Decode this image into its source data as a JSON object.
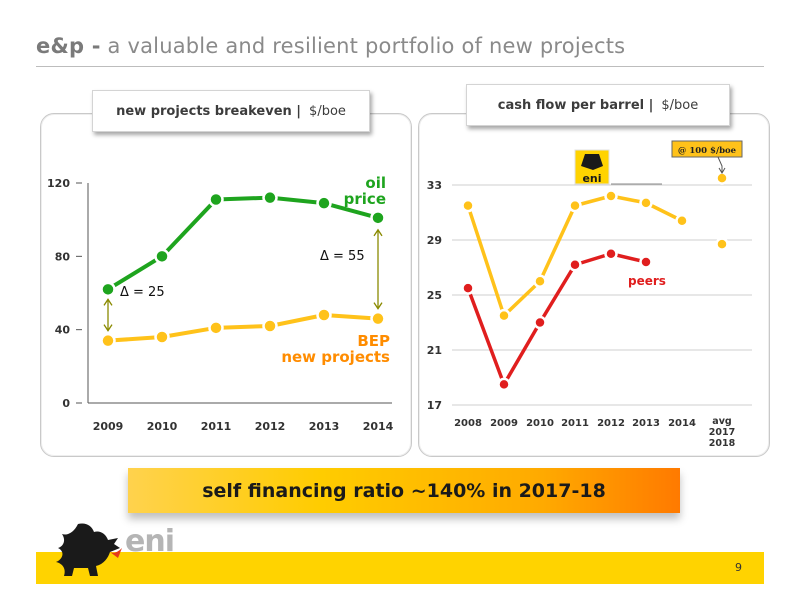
{
  "page": {
    "title_prefix": "e&p -",
    "title_rest": "a valuable and resilient portfolio of new projects",
    "banner": "self financing ratio ~140% in 2017-18",
    "page_number": "9",
    "logo_text": "eni",
    "colors": {
      "green": "#1ea41e",
      "orange": "#ffc21a",
      "red": "#e01e1e",
      "footer": "#ffd300"
    }
  },
  "chart_data": [
    {
      "type": "line",
      "title_bold": "new projects breakeven |",
      "title_unit": "$/boe",
      "categories": [
        "2009",
        "2010",
        "2011",
        "2012",
        "2013",
        "2014"
      ],
      "yticks": [
        "0",
        "40",
        "80",
        "120"
      ],
      "ylim": [
        0,
        130
      ],
      "series": [
        {
          "name_line1": "oil",
          "name_line2": "price",
          "color": "#1ea41e",
          "values": [
            62,
            80,
            111,
            112,
            109,
            101
          ]
        },
        {
          "name_line1": "BEP",
          "name_line2": "new projects",
          "color": "#ffc21a",
          "values": [
            34,
            36,
            41,
            42,
            48,
            46
          ]
        }
      ],
      "annotations": [
        "Δ = 25",
        "Δ = 55"
      ]
    },
    {
      "type": "line",
      "title_bold": "cash flow per barrel |",
      "title_unit": "$/boe",
      "categories": [
        "2008",
        "2009",
        "2010",
        "2011",
        "2012",
        "2013",
        "2014"
      ],
      "avg_label": [
        "avg",
        "2017",
        "2018"
      ],
      "yticks": [
        "17",
        "21",
        "25",
        "29",
        "33"
      ],
      "ylim": [
        17,
        34
      ],
      "series": [
        {
          "name": "eni",
          "color": "#ffc21a",
          "values": [
            31.5,
            23.5,
            26,
            31.5,
            32.2,
            31.7,
            30.4
          ]
        },
        {
          "name": "peers",
          "color": "#e01e1e",
          "values": [
            25.5,
            18.5,
            23,
            27.2,
            28,
            27.4,
            null
          ]
        }
      ],
      "avg_points": [
        33.5,
        28.7
      ],
      "avg_callout": "@ 100 $/boe",
      "logo_text": "eni"
    }
  ]
}
